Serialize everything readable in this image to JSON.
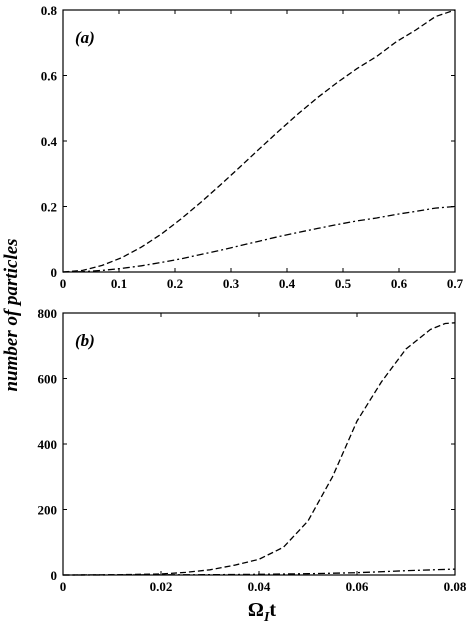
{
  "ylabel": "number of particles",
  "xlabel": {
    "main": "Ω",
    "sub": "I",
    "tail": "t"
  },
  "chart_data": [
    {
      "type": "line",
      "panel_label": "(a)",
      "xlim": [
        0,
        0.7
      ],
      "ylim": [
        0,
        0.8
      ],
      "xticks": [
        "0",
        "0.1",
        "0.2",
        "0.3",
        "0.4",
        "0.5",
        "0.6",
        "0.7"
      ],
      "yticks": [
        "0",
        "0.2",
        "0.4",
        "0.6",
        "0.8"
      ],
      "series": [
        {
          "style": "dashed",
          "x": [
            0,
            0.035,
            0.07,
            0.105,
            0.14,
            0.175,
            0.21,
            0.245,
            0.28,
            0.315,
            0.35,
            0.385,
            0.42,
            0.455,
            0.49,
            0.525,
            0.56,
            0.595,
            0.63,
            0.665,
            0.7
          ],
          "y": [
            0,
            0.005,
            0.02,
            0.044,
            0.076,
            0.115,
            0.161,
            0.211,
            0.264,
            0.319,
            0.375,
            0.43,
            0.483,
            0.533,
            0.579,
            0.621,
            0.658,
            0.703,
            0.739,
            0.78,
            0.8
          ]
        },
        {
          "style": "dashdot",
          "x": [
            0,
            0.035,
            0.07,
            0.105,
            0.14,
            0.175,
            0.21,
            0.245,
            0.28,
            0.315,
            0.35,
            0.385,
            0.42,
            0.455,
            0.49,
            0.525,
            0.56,
            0.595,
            0.63,
            0.665,
            0.7
          ],
          "y": [
            0,
            0.001,
            0.005,
            0.011,
            0.019,
            0.029,
            0.04,
            0.053,
            0.066,
            0.08,
            0.094,
            0.108,
            0.121,
            0.133,
            0.145,
            0.156,
            0.165,
            0.176,
            0.185,
            0.195,
            0.2
          ]
        }
      ]
    },
    {
      "type": "line",
      "panel_label": "(b)",
      "xlim": [
        0,
        0.08
      ],
      "ylim": [
        0,
        800
      ],
      "xticks": [
        "0",
        "0.02",
        "0.04",
        "0.06",
        "0.08"
      ],
      "yticks": [
        "0",
        "200",
        "400",
        "600",
        "800"
      ],
      "series": [
        {
          "style": "dashed",
          "x": [
            0,
            0.01,
            0.02,
            0.025,
            0.03,
            0.035,
            0.04,
            0.045,
            0.05,
            0.055,
            0.06,
            0.065,
            0.07,
            0.075,
            0.078,
            0.08
          ],
          "y": [
            0,
            0.5,
            3,
            8,
            16,
            30,
            48,
            85,
            165,
            300,
            470,
            590,
            690,
            750,
            768,
            770
          ]
        },
        {
          "style": "dashdot",
          "x": [
            0,
            0.01,
            0.02,
            0.03,
            0.04,
            0.05,
            0.06,
            0.07,
            0.08
          ],
          "y": [
            0,
            0.2,
            0.5,
            1,
            2,
            4,
            7,
            13,
            18
          ]
        }
      ]
    }
  ]
}
